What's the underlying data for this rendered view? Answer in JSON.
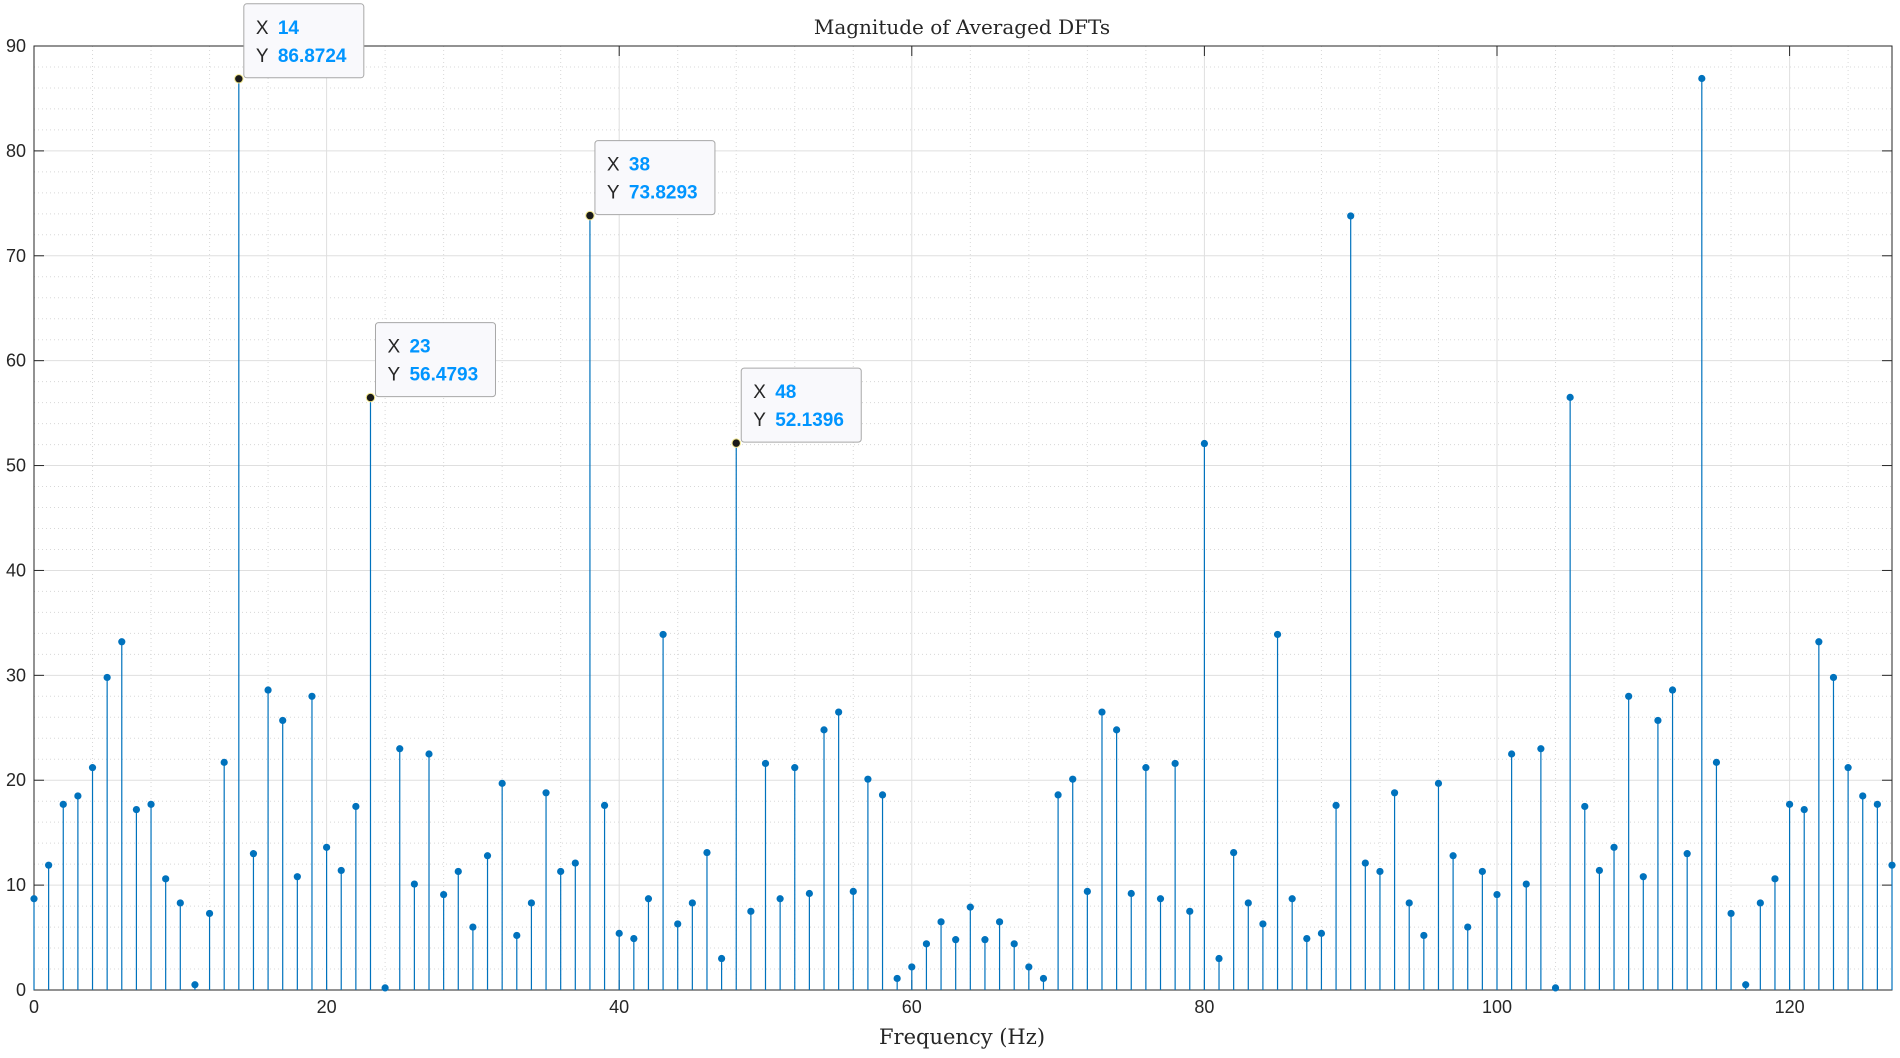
{
  "chart_data": {
    "type": "stem",
    "title": "Magnitude of Averaged DFTs",
    "xlabel": "Frequency (Hz)",
    "ylabel": "",
    "xlim": [
      0,
      127
    ],
    "ylim": [
      0,
      90
    ],
    "xticks": [
      0,
      20,
      40,
      60,
      80,
      100,
      120
    ],
    "yticks": [
      0,
      10,
      20,
      30,
      40,
      50,
      60,
      70,
      80,
      90
    ],
    "grid": true,
    "minor_grid": true,
    "x": [
      0,
      1,
      2,
      3,
      4,
      5,
      6,
      7,
      8,
      9,
      10,
      11,
      12,
      13,
      14,
      15,
      16,
      17,
      18,
      19,
      20,
      21,
      22,
      23,
      24,
      25,
      26,
      27,
      28,
      29,
      30,
      31,
      32,
      33,
      34,
      35,
      36,
      37,
      38,
      39,
      40,
      41,
      42,
      43,
      44,
      45,
      46,
      47,
      48,
      49,
      50,
      51,
      52,
      53,
      54,
      55,
      56,
      57,
      58,
      59,
      60,
      61,
      62,
      63,
      64,
      65,
      66,
      67,
      68,
      69,
      70,
      71,
      72,
      73,
      74,
      75,
      76,
      77,
      78,
      79,
      80,
      81,
      82,
      83,
      84,
      85,
      86,
      87,
      88,
      89,
      90,
      91,
      92,
      93,
      94,
      95,
      96,
      97,
      98,
      99,
      100,
      101,
      102,
      103,
      104,
      105,
      106,
      107,
      108,
      109,
      110,
      111,
      112,
      113,
      114,
      115,
      116,
      117,
      118,
      119,
      120,
      121,
      122,
      123,
      124,
      125,
      126,
      127
    ],
    "y": [
      8.7,
      11.9,
      17.7,
      18.5,
      21.2,
      29.8,
      33.2,
      17.2,
      17.7,
      10.6,
      8.3,
      0.5,
      7.3,
      21.7,
      86.8724,
      13.0,
      28.6,
      25.7,
      10.8,
      28.0,
      13.6,
      11.4,
      17.5,
      56.4793,
      0.2,
      23.0,
      10.1,
      22.5,
      9.1,
      11.3,
      6.0,
      12.8,
      19.7,
      5.2,
      8.3,
      18.8,
      11.3,
      12.1,
      73.8293,
      17.6,
      5.4,
      4.9,
      8.7,
      33.9,
      6.3,
      8.3,
      13.1,
      3.0,
      52.1396,
      7.5,
      21.6,
      8.7,
      21.2,
      9.2,
      24.8,
      26.5,
      9.4,
      20.1,
      18.6,
      1.1,
      2.2,
      4.4,
      6.5,
      4.8,
      7.9,
      4.8,
      6.5,
      4.4,
      2.2,
      1.1,
      18.6,
      20.1,
      9.4,
      26.5,
      24.8,
      9.2,
      21.2,
      8.7,
      21.6,
      7.5,
      52.1,
      3.0,
      13.1,
      8.3,
      6.3,
      33.9,
      8.7,
      4.9,
      5.4,
      17.6,
      73.8,
      12.1,
      11.3,
      18.8,
      8.3,
      5.2,
      19.7,
      12.8,
      6.0,
      11.3,
      9.1,
      22.5,
      10.1,
      23.0,
      0.2,
      56.5,
      17.5,
      11.4,
      13.6,
      28.0,
      10.8,
      25.7,
      28.6,
      13.0,
      86.9,
      21.7,
      7.3,
      0.5,
      8.3,
      10.6,
      17.7,
      17.2,
      33.2,
      29.8,
      21.2,
      18.5,
      17.7,
      11.9
    ],
    "color": "#0072BD",
    "tooltip_color": "#0095ff",
    "datatips": [
      {
        "x_label": "X",
        "x_value": "14",
        "y_label": "Y",
        "y_value": "86.8724",
        "x": 14,
        "y": 86.8724
      },
      {
        "x_label": "X",
        "x_value": "38",
        "y_label": "Y",
        "y_value": "73.8293",
        "x": 38,
        "y": 73.8293
      },
      {
        "x_label": "X",
        "x_value": "23",
        "y_label": "Y",
        "y_value": "56.4793",
        "x": 23,
        "y": 56.4793
      },
      {
        "x_label": "X",
        "x_value": "48",
        "y_label": "Y",
        "y_value": "52.1396",
        "x": 48,
        "y": 52.1396
      }
    ]
  }
}
